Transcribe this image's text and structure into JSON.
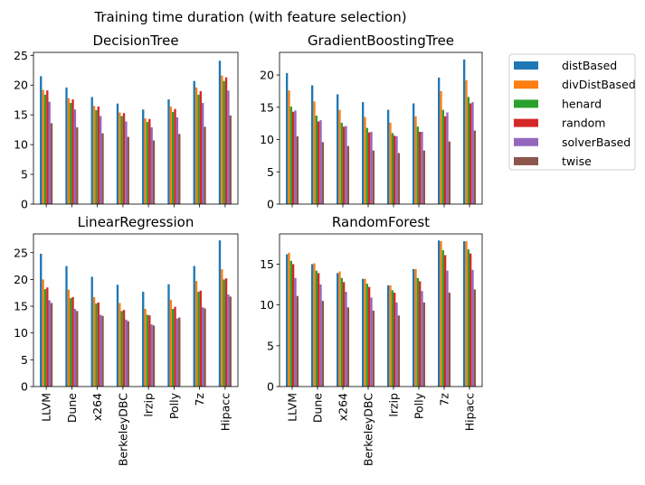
{
  "suptitle": "Training time duration (with feature selection)",
  "colors": {
    "distBased": "#1f77b4",
    "divDistBased": "#ff7f0e",
    "henard": "#2ca02c",
    "random": "#d62728",
    "solverBased": "#9467bd",
    "twise": "#8c564b"
  },
  "legend": {
    "placement": "right",
    "entries": [
      "distBased",
      "divDistBased",
      "henard",
      "random",
      "solverBased",
      "twise"
    ]
  },
  "chart_data": [
    {
      "type": "bar",
      "title": "DecisionTree",
      "categories": [
        "LLVM",
        "Dune",
        "x264",
        "BerkeleyDBC",
        "lrzip",
        "Polly",
        "7z",
        "Hipacc"
      ],
      "ylim": [
        0,
        25.5
      ],
      "yticks": [
        0,
        5,
        10,
        15,
        20,
        25
      ],
      "series": [
        {
          "name": "distBased",
          "values": [
            21.5,
            19.6,
            18.0,
            16.9,
            15.9,
            17.6,
            20.7,
            24.1
          ]
        },
        {
          "name": "divDistBased",
          "values": [
            19.2,
            17.8,
            16.5,
            15.4,
            14.4,
            16.4,
            19.6,
            21.6
          ]
        },
        {
          "name": "henard",
          "values": [
            18.4,
            17.0,
            15.8,
            14.8,
            13.8,
            15.5,
            18.4,
            20.7
          ]
        },
        {
          "name": "random",
          "values": [
            19.1,
            17.6,
            16.4,
            15.3,
            14.3,
            16.0,
            19.0,
            21.3
          ]
        },
        {
          "name": "solverBased",
          "values": [
            17.2,
            15.9,
            14.8,
            13.9,
            12.9,
            14.6,
            17.0,
            19.1
          ]
        },
        {
          "name": "twise",
          "values": [
            13.6,
            12.9,
            11.9,
            11.3,
            10.7,
            11.8,
            13.0,
            14.9
          ]
        }
      ]
    },
    {
      "type": "bar",
      "title": "GradientBoostingTree",
      "categories": [
        "LLVM",
        "Dune",
        "x264",
        "BerkeleyDBC",
        "lrzip",
        "Polly",
        "7z",
        "Hipacc"
      ],
      "ylim": [
        0,
        23.5
      ],
      "yticks": [
        0,
        5,
        10,
        15,
        20
      ],
      "series": [
        {
          "name": "distBased",
          "values": [
            20.3,
            18.4,
            17.0,
            15.8,
            14.6,
            15.6,
            19.6,
            22.4
          ]
        },
        {
          "name": "divDistBased",
          "values": [
            17.6,
            15.9,
            14.6,
            13.5,
            12.6,
            13.6,
            17.5,
            19.2
          ]
        },
        {
          "name": "henard",
          "values": [
            15.1,
            13.7,
            12.6,
            11.8,
            11.0,
            12.0,
            14.6,
            16.6
          ]
        },
        {
          "name": "random",
          "values": [
            14.3,
            12.8,
            12.0,
            11.1,
            10.6,
            11.2,
            13.6,
            15.6
          ]
        },
        {
          "name": "solverBased",
          "values": [
            14.5,
            13.0,
            12.1,
            11.2,
            10.5,
            11.2,
            14.2,
            15.8
          ]
        },
        {
          "name": "twise",
          "values": [
            10.5,
            9.6,
            9.0,
            8.3,
            7.9,
            8.3,
            9.7,
            11.4
          ]
        }
      ]
    },
    {
      "type": "bar",
      "title": "LinearRegression",
      "categories": [
        "LLVM",
        "Dune",
        "x264",
        "BerkeleyDBC",
        "lrzip",
        "Polly",
        "7z",
        "Hipacc"
      ],
      "ylim": [
        0,
        28.5
      ],
      "yticks": [
        0,
        5,
        10,
        15,
        20,
        25
      ],
      "series": [
        {
          "name": "distBased",
          "values": [
            24.8,
            22.5,
            20.5,
            19.0,
            17.7,
            19.1,
            22.5,
            27.3
          ]
        },
        {
          "name": "divDistBased",
          "values": [
            20.0,
            18.1,
            16.7,
            15.6,
            14.5,
            16.2,
            19.7,
            21.9
          ]
        },
        {
          "name": "henard",
          "values": [
            18.2,
            16.5,
            15.5,
            14.1,
            13.4,
            14.5,
            17.7,
            20.0
          ]
        },
        {
          "name": "random",
          "values": [
            18.5,
            16.7,
            15.7,
            14.3,
            13.3,
            14.9,
            17.9,
            20.2
          ]
        },
        {
          "name": "solverBased",
          "values": [
            16.1,
            14.5,
            13.4,
            12.5,
            11.6,
            12.7,
            14.8,
            17.2
          ]
        },
        {
          "name": "twise",
          "values": [
            15.6,
            14.1,
            13.2,
            12.2,
            11.4,
            12.9,
            14.6,
            16.8
          ]
        }
      ]
    },
    {
      "type": "bar",
      "title": "RandomForest",
      "categories": [
        "LLVM",
        "Dune",
        "x264",
        "BerkeleyDBC",
        "lrzip",
        "Polly",
        "7z",
        "Hipacc"
      ],
      "ylim": [
        0,
        18.7
      ],
      "yticks": [
        0,
        5,
        10,
        15
      ],
      "series": [
        {
          "name": "distBased",
          "values": [
            16.2,
            15.0,
            13.9,
            13.2,
            12.4,
            14.4,
            17.9,
            17.8
          ]
        },
        {
          "name": "divDistBased",
          "values": [
            16.4,
            15.1,
            14.1,
            13.2,
            12.4,
            14.4,
            17.8,
            17.8
          ]
        },
        {
          "name": "henard",
          "values": [
            15.4,
            14.2,
            13.3,
            12.6,
            11.8,
            13.3,
            16.7,
            16.8
          ]
        },
        {
          "name": "random",
          "values": [
            15.0,
            13.9,
            12.8,
            12.2,
            11.5,
            12.9,
            16.1,
            16.3
          ]
        },
        {
          "name": "solverBased",
          "values": [
            13.3,
            12.5,
            11.6,
            10.9,
            10.3,
            11.7,
            14.2,
            14.3
          ]
        },
        {
          "name": "twise",
          "values": [
            11.1,
            10.5,
            9.7,
            9.3,
            8.7,
            10.3,
            11.5,
            11.9
          ]
        }
      ]
    }
  ]
}
